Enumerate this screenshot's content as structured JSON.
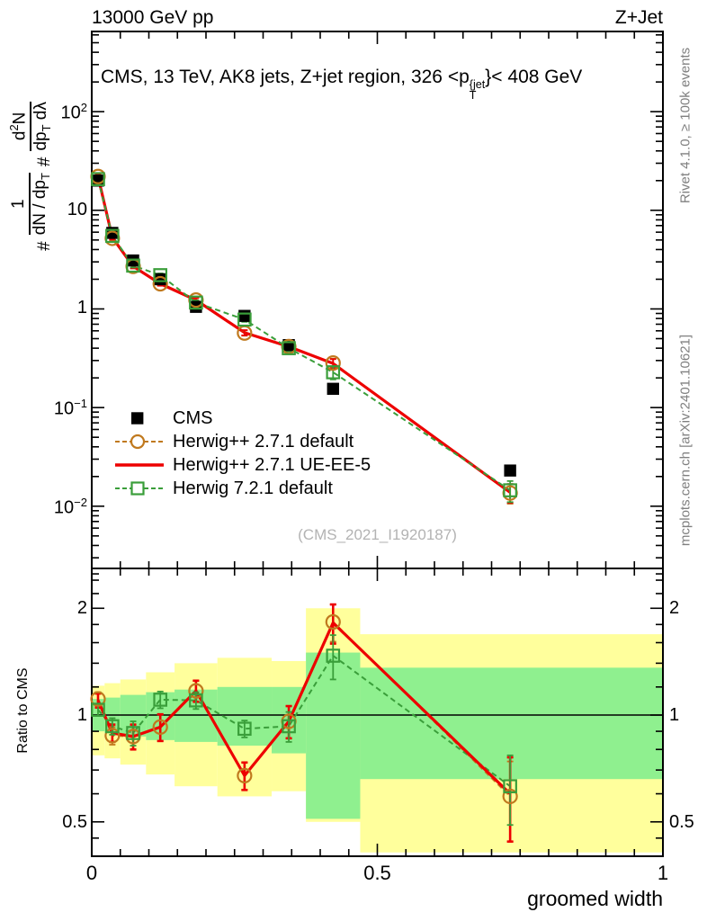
{
  "header": {
    "left": "13000 GeV pp",
    "right": "Z+Jet"
  },
  "side_notes": {
    "top": "Rivet 4.1.0, ≥ 100k events",
    "bottom": "mcplots.cern.ch [arXiv:2401.10621]"
  },
  "panel_title": {
    "pre": "CMS, 13 TeV, AK8 jets, Z+jet region, 326 <p",
    "sup": "{jet",
    "sub": "T",
    "post": "}< 408 GeV"
  },
  "watermark": "(CMS_2021_I1920187)",
  "ratio_axis_label": "Ratio to CMS",
  "x_axis_label": "groomed width",
  "y_axis_label": {
    "hash1": "#",
    "frac1_num": "1",
    "frac1_den_pre": "dN / dp",
    "frac1_den_sub": "T",
    "hash2": "#",
    "frac2_num_pre": "d",
    "frac2_num_sup": "2",
    "frac2_num_post": "N",
    "frac2_den_pre": "dp",
    "frac2_den_sub": "T",
    "frac2_den_post": " dλ"
  },
  "chart_data": {
    "type": "line",
    "title": "CMS, 13 TeV, AK8 jets, Z+jet region, 326 <pT{jet}< 408 GeV",
    "xlabel": "groomed width",
    "x_range": [
      0,
      1
    ],
    "x_major_ticks": {
      "values": [
        0,
        0.5,
        1
      ],
      "labels": [
        "0",
        "0.5",
        "1"
      ]
    },
    "x_minor_step": 0.05,
    "main_panel": {
      "y_scale": "log",
      "y_range": [
        0.00234,
        650
      ],
      "y_ticks": [
        {
          "v": 100,
          "base": "10",
          "exp": "2"
        },
        {
          "v": 10,
          "base": "10",
          "exp": ""
        },
        {
          "v": 1,
          "base": "1",
          "exp": ""
        },
        {
          "v": 0.1,
          "base": "10",
          "exp": "−1"
        },
        {
          "v": 0.01,
          "base": "10",
          "exp": "−2"
        }
      ]
    },
    "ratio_panel": {
      "y_scale": "log",
      "y_range": [
        0.4,
        2.59
      ],
      "baseline": 1,
      "y_ticks": {
        "values": [
          2,
          1,
          0.5
        ],
        "labels": [
          "2",
          "1",
          "0.5"
        ]
      },
      "y_minor_ticks": [
        2.5,
        2.4,
        2.2,
        1.8,
        1.6,
        1.4,
        1.2,
        0.9,
        0.8,
        0.7,
        0.6,
        0.45
      ]
    },
    "bin_edges": [
      0,
      0.0225,
      0.05,
      0.095,
      0.145,
      0.22,
      0.315,
      0.375,
      0.47,
      1.0
    ],
    "x": [
      0.011,
      0.036,
      0.0725,
      0.12,
      0.1825,
      0.2675,
      0.345,
      0.4225,
      0.7325
    ],
    "series": [
      {
        "name": "CMS",
        "color": "#000000",
        "marker": "filled-square",
        "line": "none",
        "legend_marker": "filled-square",
        "values": [
          20,
          5.9,
          3.1,
          2.0,
          1.05,
          0.85,
          0.43,
          0.155,
          0.023
        ]
      },
      {
        "name": "Herwig++ 2.7.1 default",
        "color": "#c0791e",
        "marker": "open-circle",
        "line": "dashed",
        "legend_marker": "circle-dashed",
        "values": [
          22,
          5.2,
          2.7,
          1.8,
          1.23,
          0.57,
          0.415,
          0.283,
          0.0136
        ],
        "errors": [
          1.2,
          0.25,
          0.12,
          0.08,
          0.06,
          0.035,
          0.03,
          0.03,
          0.003
        ],
        "ratio": [
          1.11,
          0.875,
          0.87,
          0.925,
          1.17,
          0.675,
          0.96,
          1.83,
          0.59
        ],
        "ratio_err": [
          0.05,
          0.05,
          0.07,
          0.08,
          0.08,
          0.06,
          0.1,
          0.22,
          0.15
        ]
      },
      {
        "name": "Herwig++ 2.7.1 UE-EE-5",
        "color": "#ed0000",
        "marker": "none",
        "line": "solid",
        "legend_marker": "line-solid",
        "values": [
          22,
          5.3,
          2.7,
          1.8,
          1.23,
          0.575,
          0.415,
          0.28,
          0.0138
        ],
        "errors": [
          1.2,
          0.25,
          0.12,
          0.08,
          0.06,
          0.035,
          0.03,
          0.03,
          0.003
        ],
        "ratio": [
          1.1,
          0.89,
          0.87,
          0.925,
          1.17,
          0.675,
          0.96,
          1.82,
          0.6
        ],
        "ratio_err": [
          0.05,
          0.05,
          0.07,
          0.08,
          0.08,
          0.06,
          0.1,
          0.23,
          0.16
        ]
      },
      {
        "name": "Herwig 7.2.1 default",
        "color": "#3a9e3a",
        "marker": "open-square",
        "line": "dashed",
        "legend_marker": "square-dashed",
        "values": [
          20.7,
          5.5,
          2.75,
          2.2,
          1.16,
          0.78,
          0.4,
          0.228,
          0.0145
        ],
        "errors": [
          1.0,
          0.25,
          0.12,
          0.09,
          0.06,
          0.04,
          0.03,
          0.035,
          0.0035
        ],
        "ratio": [
          1.035,
          0.93,
          0.89,
          1.105,
          1.1,
          0.915,
          0.93,
          1.47,
          0.63
        ],
        "ratio_err": [
          0.04,
          0.05,
          0.07,
          0.06,
          0.06,
          0.05,
          0.09,
          0.21,
          0.14
        ]
      }
    ],
    "bands": {
      "yellow": {
        "color": "#ffff9c",
        "hi": [
          1.21,
          1.23,
          1.26,
          1.32,
          1.4,
          1.45,
          1.42,
          2.0,
          1.69
        ],
        "lo": [
          0.77,
          0.755,
          0.725,
          0.68,
          0.63,
          0.59,
          0.61,
          0.5,
          0.41
        ]
      },
      "green": {
        "color": "#8ff08f",
        "hi": [
          1.11,
          1.12,
          1.14,
          1.16,
          1.18,
          1.2,
          1.2,
          1.5,
          1.36
        ],
        "lo": [
          0.9,
          0.89,
          0.87,
          0.85,
          0.84,
          0.82,
          0.78,
          0.51,
          0.66
        ]
      }
    },
    "legend_position": "bottom-left-of-main-panel",
    "grid": false
  }
}
